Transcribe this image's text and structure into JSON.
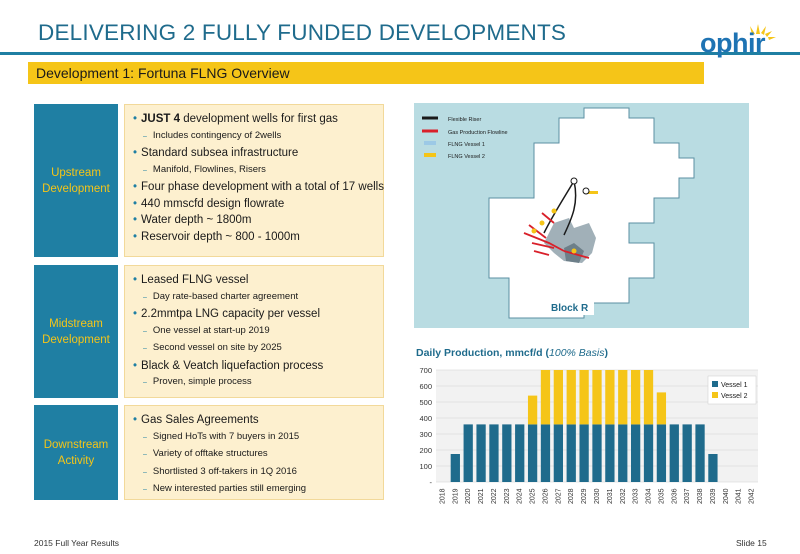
{
  "header": {
    "title": "DELIVERING 2 FULLY FUNDED DEVELOPMENTS",
    "subtitle": "Development 1: Fortuna FLNG Overview",
    "logo_text": "ophir"
  },
  "sections": [
    {
      "label_line1": "Upstream",
      "label_line2": "Development",
      "items": [
        {
          "type": "bullet",
          "bold": "JUST 4",
          "text": " development wells  for first gas"
        },
        {
          "type": "sub",
          "text": "Includes contingency of 2wells"
        },
        {
          "type": "bullet",
          "bold": "",
          "text": "Standard subsea infrastructure"
        },
        {
          "type": "sub",
          "text": "Manifold, Flowlines, Risers"
        },
        {
          "type": "bullet",
          "bold": "",
          "text": "Four phase development  with a total of 17 wells"
        },
        {
          "type": "bullet",
          "bold": "",
          "text": "440 mmscfd design flowrate"
        },
        {
          "type": "bullet",
          "bold": "",
          "text": "Water depth ~ 1800m"
        },
        {
          "type": "bullet",
          "bold": "",
          "text": "Reservoir depth ~ 800 - 1000m"
        }
      ]
    },
    {
      "label_line1": "Midstream",
      "label_line2": "Development",
      "items": [
        {
          "type": "bullet",
          "bold": "",
          "text": "Leased FLNG vessel"
        },
        {
          "type": "sub",
          "text": "Day rate-based charter agreement"
        },
        {
          "type": "bullet",
          "bold": "",
          "text": "2.2mmtpa LNG capacity per vessel"
        },
        {
          "type": "sub",
          "text": "One vessel at start-up 2019"
        },
        {
          "type": "sub",
          "text": "Second vessel on site by 2025"
        },
        {
          "type": "bullet",
          "bold": "",
          "text": "Black & Veatch liquefaction process"
        },
        {
          "type": "sub",
          "text": "Proven, simple process"
        }
      ]
    },
    {
      "label_line1": "Downstream",
      "label_line2": "Activity",
      "items": [
        {
          "type": "bullet",
          "bold": "",
          "text": "Gas Sales Agreements"
        },
        {
          "type": "sub",
          "text": "Signed HoTs with 7 buyers in 2015"
        },
        {
          "type": "sub",
          "text": "Variety of offtake structures"
        },
        {
          "type": "sub",
          "text": "Shortlisted 3 off-takers in 1Q 2016"
        },
        {
          "type": "sub",
          "text": "New interested parties still emerging"
        }
      ]
    }
  ],
  "map": {
    "legend": [
      "Flexible Riser",
      "Gas Production Flowline",
      "FLNG Vessel 1",
      "FLNG Vessel 2"
    ],
    "block_label": "Block R",
    "colors": {
      "sea": "#b9dce2",
      "block": "#ffffff",
      "riser": "#1a1a1a",
      "flowline": "#d9202a",
      "vessel1": "#9cc9e6",
      "vessel2": "#f5c518",
      "field": "#8a9ca6"
    }
  },
  "chart_title": {
    "main": "Daily Production, mmcf/d (",
    "italic": "100% Basis",
    "close": ")"
  },
  "chart_data": {
    "type": "bar",
    "stacked": true,
    "categories": [
      "2018",
      "2019",
      "2020",
      "2021",
      "2022",
      "2023",
      "2024",
      "2025",
      "2026",
      "2027",
      "2028",
      "2029",
      "2030",
      "2031",
      "2032",
      "2033",
      "2034",
      "2035",
      "2036",
      "2037",
      "2038",
      "2039",
      "2040",
      "2041",
      "2042"
    ],
    "series": [
      {
        "name": "Vessel 1",
        "color": "#1f6b8c",
        "values": [
          0,
          175,
          360,
          360,
          360,
          360,
          360,
          360,
          360,
          360,
          360,
          360,
          360,
          360,
          360,
          360,
          360,
          360,
          360,
          360,
          360,
          175,
          0,
          0,
          0
        ]
      },
      {
        "name": "Vessel 2",
        "color": "#f5c518",
        "values": [
          0,
          0,
          0,
          0,
          0,
          0,
          0,
          180,
          340,
          340,
          340,
          340,
          340,
          340,
          340,
          340,
          340,
          200,
          0,
          0,
          0,
          0,
          0,
          0,
          0
        ]
      }
    ],
    "yticks": [
      "-",
      "100",
      "200",
      "300",
      "400",
      "500",
      "600",
      "700"
    ],
    "ylim": [
      0,
      700
    ],
    "legend_position": "top-right",
    "grid": true
  },
  "footer": {
    "left": "2015 Full Year Results",
    "right": "Slide 15"
  }
}
